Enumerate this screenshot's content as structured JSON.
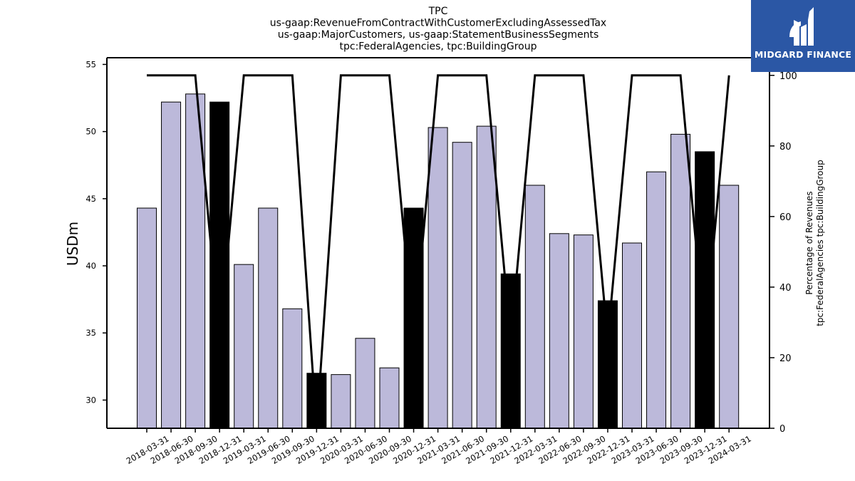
{
  "title_lines": [
    "TPC",
    "us-gaap:RevenueFromContractWithCustomerExcludingAssessedTax",
    "us-gaap:MajorCustomers, us-gaap:StatementBusinessSegments",
    "tpc:FederalAgencies, tpc:BuildingGroup"
  ],
  "logo": {
    "text": "MIDGARD FINANCE",
    "icon": "midgard-logo-icon",
    "color": "#2b57a5"
  },
  "colors": {
    "bar_default": "#bcb9da",
    "bar_highlight": "#000000",
    "line": "#000000"
  },
  "chart_data": {
    "type": "bar",
    "categories": [
      "2018-03-31",
      "2018-06-30",
      "2018-09-30",
      "2018-12-31",
      "2019-03-31",
      "2019-06-30",
      "2019-09-30",
      "2019-12-31",
      "2020-03-31",
      "2020-06-30",
      "2020-09-30",
      "2020-12-31",
      "2021-03-31",
      "2021-06-30",
      "2021-09-30",
      "2021-12-31",
      "2022-03-31",
      "2022-06-30",
      "2022-09-30",
      "2022-12-31",
      "2023-03-31",
      "2023-06-30",
      "2023-09-30",
      "2023-12-31",
      "2024-03-31"
    ],
    "values": [
      44.3,
      52.2,
      52.8,
      52.2,
      40.1,
      44.3,
      36.8,
      32.0,
      31.9,
      34.6,
      32.4,
      44.3,
      50.3,
      49.2,
      50.4,
      39.4,
      46.0,
      42.4,
      42.3,
      37.4,
      41.7,
      47.0,
      49.8,
      48.5,
      46.0
    ],
    "highlight": [
      false,
      false,
      false,
      true,
      false,
      false,
      false,
      true,
      false,
      false,
      false,
      true,
      false,
      false,
      false,
      true,
      false,
      false,
      false,
      true,
      false,
      false,
      false,
      true,
      false
    ],
    "line_series": {
      "values": [
        100,
        100,
        100,
        25,
        100,
        100,
        100,
        0,
        100,
        100,
        100,
        25,
        100,
        100,
        100,
        25,
        100,
        100,
        100,
        25,
        100,
        100,
        100,
        25,
        100
      ],
      "ylim": [
        0,
        105
      ],
      "yticks": [
        0,
        20,
        40,
        60,
        80,
        100
      ]
    },
    "ylim": [
      27.9,
      55.5
    ],
    "yticks": [
      30,
      35,
      40,
      45,
      50,
      55
    ],
    "xlabel": "",
    "ylabel": "USDm",
    "ylabel_right": [
      "Percentage of Revenues",
      "tpc:FederalAgencies tpc:BuildingGroup"
    ],
    "grid": false,
    "legend": "none"
  }
}
